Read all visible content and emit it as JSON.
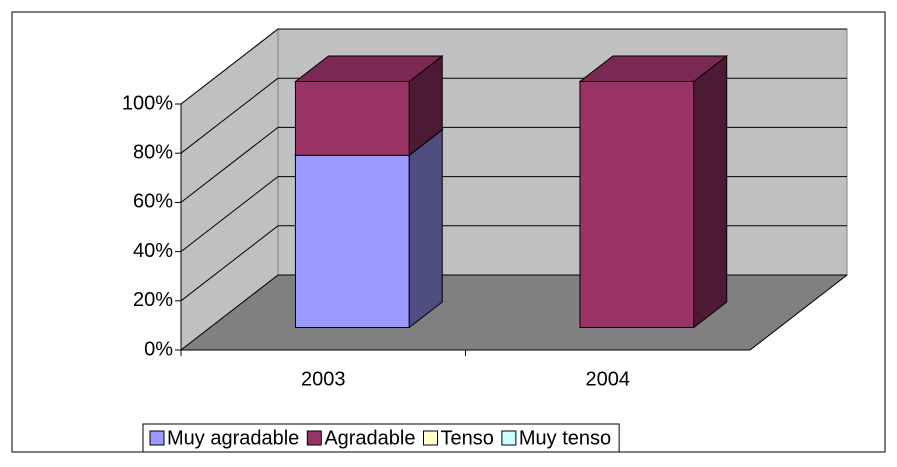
{
  "chart_data": {
    "type": "bar3d_stacked",
    "categories": [
      "2003",
      "2004"
    ],
    "series": [
      {
        "name": "Muy agradable",
        "color": "#9999ff",
        "values": [
          70,
          0
        ]
      },
      {
        "name": "Agradable",
        "color": "#993366",
        "values": [
          30,
          100
        ]
      },
      {
        "name": "Tenso",
        "color": "#ffffcc",
        "values": [
          0,
          0
        ]
      },
      {
        "name": "Muy tenso",
        "color": "#ccffff",
        "values": [
          0,
          0
        ]
      }
    ],
    "ylim": [
      0,
      100
    ],
    "yticks": [
      {
        "value": 0,
        "label": "0%"
      },
      {
        "value": 20,
        "label": "20%"
      },
      {
        "value": 40,
        "label": "40%"
      },
      {
        "value": 60,
        "label": "60%"
      },
      {
        "value": 80,
        "label": "80%"
      },
      {
        "value": 100,
        "label": "100%"
      }
    ],
    "grid": true,
    "legend": "bottom"
  }
}
